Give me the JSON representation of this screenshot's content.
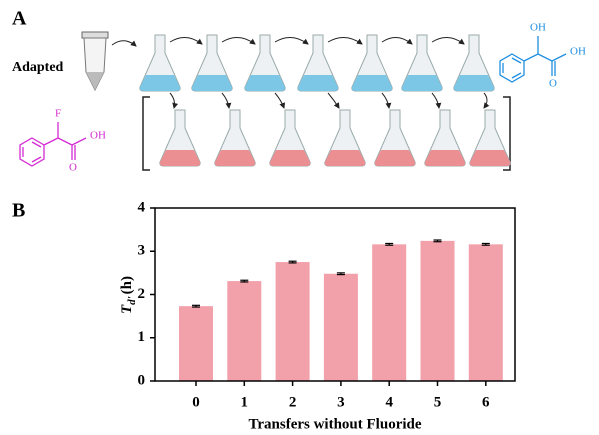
{
  "panel_labels": [
    "A",
    "B"
  ],
  "diagram": {
    "adapted_label": "Adapted",
    "right_molecule": {
      "hydroxyl": "OH",
      "acid_oh": "OH",
      "carbonyl_o": "O"
    },
    "left_molecule": {
      "fluorine": "F",
      "acid_oh": "OH",
      "carbonyl_o": "O"
    }
  },
  "chart_data": {
    "type": "bar",
    "xlabel": "Transfers without Fluoride",
    "ylabel": {
      "symbol": "T",
      "subscript": "d'",
      "unit": "(h)"
    },
    "categories": [
      "0",
      "1",
      "2",
      "3",
      "4",
      "5",
      "6"
    ],
    "values": [
      1.73,
      2.31,
      2.75,
      2.48,
      3.16,
      3.24,
      3.16
    ],
    "errors": [
      0.02,
      0.02,
      0.02,
      0.02,
      0.02,
      0.02,
      0.02
    ],
    "color": "#f2a0aa",
    "ylim": [
      0,
      4
    ],
    "yticks": [
      0,
      1,
      2,
      3,
      4
    ]
  }
}
